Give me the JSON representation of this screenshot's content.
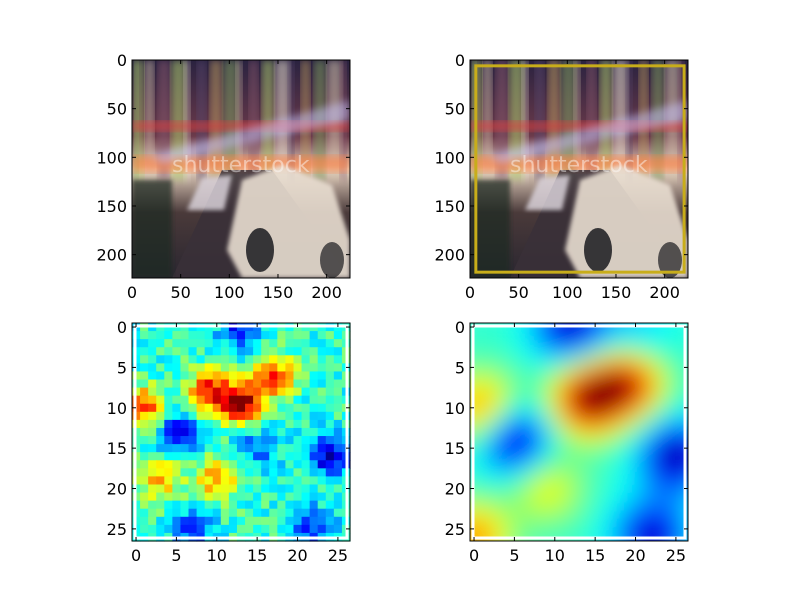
{
  "chart_data": [
    {
      "type": "image",
      "image_content": "motion-blurred night city street photo with taxi, watermark",
      "watermark": "shutterstock",
      "xlim": [
        0,
        224
      ],
      "ylim": [
        224,
        0
      ],
      "xticks": [
        "0",
        "50",
        "100",
        "150",
        "200"
      ],
      "yticks": [
        "0",
        "50",
        "100",
        "150",
        "200"
      ]
    },
    {
      "type": "image",
      "image_content": "same photo with bounding box overlay",
      "watermark": "shutterstock",
      "xlim": [
        0,
        224
      ],
      "ylim": [
        224,
        0
      ],
      "xticks": [
        "0",
        "50",
        "100",
        "150",
        "200"
      ],
      "yticks": [
        "0",
        "50",
        "100",
        "150",
        "200"
      ],
      "box": {
        "x0": 6,
        "y0": 6,
        "x1": 220,
        "y1": 218
      },
      "box_color": "#c8ad1a"
    },
    {
      "type": "heatmap",
      "interpolation": "nearest",
      "colormap": "jet",
      "grid_size": 27,
      "xlim": [
        -0.5,
        26.5
      ],
      "ylim": [
        26.5,
        -0.5
      ],
      "xticks": [
        "0",
        "5",
        "10",
        "15",
        "20",
        "25"
      ],
      "yticks": [
        "0",
        "5",
        "10",
        "15",
        "20",
        "25"
      ],
      "border_color": "#ffffff",
      "hotspots": [
        {
          "x": 13,
          "y": 9.5,
          "value": 0.95
        },
        {
          "x": 9,
          "y": 8,
          "value": 0.85
        },
        {
          "x": 17,
          "y": 6,
          "value": 0.8
        },
        {
          "x": 1,
          "y": 10,
          "value": 0.8
        },
        {
          "x": 10,
          "y": 19,
          "value": 0.72
        },
        {
          "x": 3,
          "y": 19,
          "value": 0.7
        }
      ],
      "coldspots": [
        {
          "x": 5,
          "y": 13,
          "value": 0.1
        },
        {
          "x": 24,
          "y": 16,
          "value": 0.08
        },
        {
          "x": 13,
          "y": 0,
          "value": 0.12
        },
        {
          "x": 22,
          "y": 25,
          "value": 0.15
        },
        {
          "x": 7,
          "y": 25,
          "value": 0.2
        },
        {
          "x": 15,
          "y": 15,
          "value": 0.22
        }
      ]
    },
    {
      "type": "heatmap",
      "interpolation": "smooth",
      "colormap": "jet",
      "grid_size": 27,
      "xlim": [
        -0.5,
        26.5
      ],
      "ylim": [
        26.5,
        -0.5
      ],
      "xticks": [
        "0",
        "5",
        "10",
        "15",
        "20",
        "25"
      ],
      "yticks": [
        "0",
        "5",
        "10",
        "15",
        "20",
        "25"
      ],
      "border_color": "#ffffff",
      "hotspots": [
        {
          "x": 14,
          "y": 9,
          "value": 0.98
        },
        {
          "x": 19,
          "y": 7,
          "value": 0.9
        },
        {
          "x": 1,
          "y": 10,
          "value": 0.75
        },
        {
          "x": 9,
          "y": 20,
          "value": 0.62
        },
        {
          "x": 0,
          "y": 26,
          "value": 0.75
        }
      ],
      "coldspots": [
        {
          "x": 5,
          "y": 14,
          "value": 0.05
        },
        {
          "x": 25,
          "y": 16,
          "value": 0.02
        },
        {
          "x": 12,
          "y": 0,
          "value": 0.05
        },
        {
          "x": 22,
          "y": 26,
          "value": 0.05
        },
        {
          "x": 20,
          "y": 1,
          "value": 0.3
        }
      ]
    }
  ]
}
